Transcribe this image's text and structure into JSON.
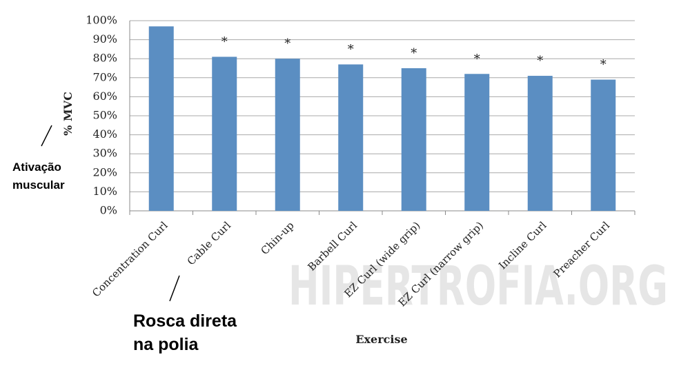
{
  "chart_data": {
    "type": "bar",
    "categories": [
      "Concentration Curl",
      "Cable Curl",
      "Chin-up",
      "Barbell Curl",
      "EZ Curl (wide grip)",
      "EZ Curl (narrow grip)",
      "Incline Curl",
      "Preacher Curl"
    ],
    "values": [
      97,
      81,
      80,
      77,
      75,
      72,
      71,
      69
    ],
    "significance": [
      null,
      "*",
      "*",
      "*",
      "*",
      "*",
      "*",
      "*"
    ],
    "color": "#5b8ec2",
    "x_label": "Exercise",
    "y_label": "% MVC",
    "ylim": [
      0,
      100
    ],
    "yticks": [
      {
        "value": 0,
        "label": "0%"
      },
      {
        "value": 10,
        "label": "10%"
      },
      {
        "value": 20,
        "label": "20%"
      },
      {
        "value": 30,
        "label": "30%"
      },
      {
        "value": 40,
        "label": "40%"
      },
      {
        "value": 50,
        "label": "50%"
      },
      {
        "value": 60,
        "label": "60%"
      },
      {
        "value": 70,
        "label": "70%"
      },
      {
        "value": 80,
        "label": "80%"
      },
      {
        "value": 90,
        "label": "90%"
      },
      {
        "value": 100,
        "label": "100%"
      }
    ],
    "grid": true,
    "callouts": [
      {
        "lines": [
          "Ativação",
          "muscular"
        ]
      },
      {
        "lines": [
          "Rosca direta",
          "na polia"
        ]
      }
    ],
    "watermark": "HIPERTROFIA.ORG"
  }
}
